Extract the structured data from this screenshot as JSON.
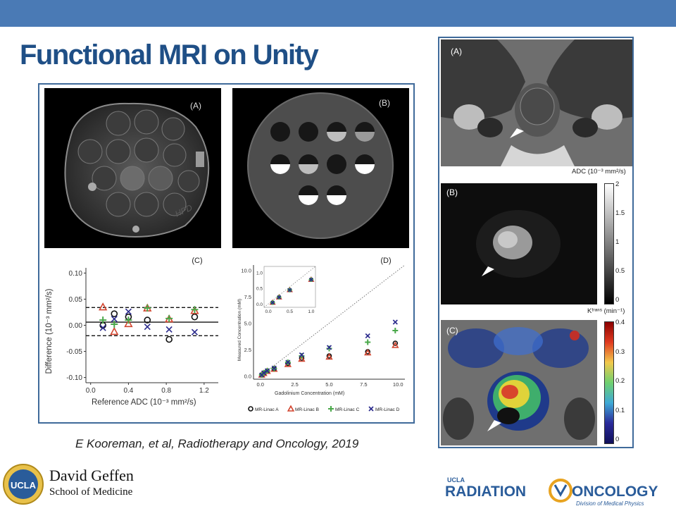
{
  "slide": {
    "title": "Functional MRI on Unity",
    "citation": "E Kooreman, et al, Radiotherapy and Oncology, 2019"
  },
  "colors": {
    "header_bar": "#4a7ab5",
    "title": "#1f4f86",
    "frame": "#3f6a9a"
  },
  "left_figure": {
    "panel_a_label": "(A)",
    "panel_b_label": "(B)",
    "panel_a_watermark": "HPD",
    "panel_c": {
      "label": "(C)",
      "ylabel": "Difference (10⁻³ mm²/s)",
      "xlabel": "Reference ADC (10⁻³ mm²/s)",
      "yticks": [
        "0.10",
        "0.05",
        "0.00",
        "-0.05",
        "-0.10"
      ],
      "xticks": [
        "0.0",
        "0.4",
        "0.8",
        "1.2"
      ]
    },
    "panel_d": {
      "label": "(D)",
      "ylabel": "Measured Concentration (mM)",
      "xlabel": "Gadolinium Concentration (mM)",
      "yticks": [
        "0.0",
        "2.5",
        "5.0",
        "7.5",
        "10.0"
      ],
      "xticks": [
        "0.0",
        "2.5",
        "5.0",
        "7.5",
        "10.0"
      ],
      "inset_yticks": [
        "0.0",
        "0.5",
        "1.0"
      ],
      "inset_xticks": [
        "0.0",
        "0.5",
        "1.0"
      ]
    },
    "legend": [
      "MR-Linac A",
      "MR-Linac B",
      "MR-Linac C",
      "MR-Linac D"
    ],
    "series_colors": [
      "#111111",
      "#d2452f",
      "#4aa84a",
      "#2a2a8c"
    ]
  },
  "right_figure": {
    "panel_a_label": "(A)",
    "panel_b_label": "(B)",
    "panel_c_label": "(C)",
    "adc_colorbar": {
      "title": "ADC (10⁻³ mm²/s)",
      "ticks": [
        "2",
        "1.5",
        "1",
        "0.5",
        "0"
      ]
    },
    "ktrans_colorbar": {
      "title": "Kᵗʳᵃⁿˢ (min⁻¹)",
      "ticks": [
        "0.4",
        "0.3",
        "0.2",
        "0.1",
        "0"
      ]
    }
  },
  "chart_data": [
    {
      "type": "scatter",
      "title": "",
      "xlabel": "Reference ADC (10⁻³ mm²/s)",
      "ylabel": "Difference (10⁻³ mm²/s)",
      "xlim": [
        -0.05,
        1.35
      ],
      "ylim": [
        -0.11,
        0.11
      ],
      "reference_lines": {
        "mean": 0.006,
        "upper": 0.034,
        "lower": -0.02
      },
      "legend": "bottom",
      "series": [
        {
          "name": "MR-Linac A",
          "marker": "circle",
          "x": [
            0.13,
            0.25,
            0.4,
            0.6,
            0.83,
            1.1
          ],
          "y": [
            0.0,
            0.022,
            0.016,
            0.01,
            -0.027,
            0.016
          ]
        },
        {
          "name": "MR-Linac B",
          "marker": "triangle",
          "x": [
            0.13,
            0.25,
            0.4,
            0.6,
            0.83,
            1.1
          ],
          "y": [
            0.035,
            -0.012,
            0.003,
            0.033,
            0.012,
            0.028
          ]
        },
        {
          "name": "MR-Linac C",
          "marker": "plus",
          "x": [
            0.13,
            0.25,
            0.4,
            0.6,
            0.83,
            1.1
          ],
          "y": [
            0.01,
            0.002,
            0.01,
            0.033,
            0.013,
            0.03
          ]
        },
        {
          "name": "MR-Linac D",
          "marker": "x",
          "x": [
            0.13,
            0.25,
            0.4,
            0.6,
            0.83,
            1.1
          ],
          "y": [
            -0.005,
            0.012,
            0.026,
            -0.003,
            -0.008,
            -0.013
          ]
        }
      ]
    },
    {
      "type": "scatter",
      "title": "",
      "xlabel": "Gadolinium Concentration (mM)",
      "ylabel": "Measured Concentration (mM)",
      "xlim": [
        -0.5,
        10.5
      ],
      "ylim": [
        -0.3,
        10.5
      ],
      "identity_line": true,
      "legend": "bottom",
      "series": [
        {
          "name": "MR-Linac A",
          "marker": "circle",
          "x": [
            0.1,
            0.25,
            0.5,
            1.0,
            2.0,
            3.0,
            5.0,
            7.8,
            9.8
          ],
          "y": [
            0.1,
            0.25,
            0.45,
            0.7,
            1.2,
            1.7,
            1.9,
            2.3,
            3.1
          ]
        },
        {
          "name": "MR-Linac B",
          "marker": "triangle",
          "x": [
            0.1,
            0.25,
            0.5,
            1.0,
            2.0,
            3.0,
            5.0,
            7.8,
            9.8
          ],
          "y": [
            0.1,
            0.25,
            0.45,
            0.65,
            1.1,
            1.6,
            1.8,
            2.2,
            2.9
          ]
        },
        {
          "name": "MR-Linac C",
          "marker": "plus",
          "x": [
            0.1,
            0.25,
            0.5,
            1.0,
            2.0,
            3.0,
            5.0,
            7.8,
            9.8
          ],
          "y": [
            0.1,
            0.3,
            0.5,
            0.7,
            1.3,
            1.9,
            2.6,
            3.2,
            4.3
          ]
        },
        {
          "name": "MR-Linac D",
          "marker": "x",
          "x": [
            0.1,
            0.25,
            0.5,
            1.0,
            2.0,
            3.0,
            5.0,
            7.8,
            9.8
          ],
          "y": [
            0.1,
            0.3,
            0.5,
            0.75,
            1.3,
            2.0,
            2.7,
            3.8,
            5.1
          ]
        }
      ],
      "inset": {
        "xlim": [
          -0.1,
          1.1
        ],
        "ylim": [
          -0.1,
          1.2
        ],
        "x": [
          0.1,
          0.25,
          0.5,
          1.0
        ],
        "y": [
          0.05,
          0.22,
          0.45,
          0.78
        ]
      }
    }
  ],
  "logos": {
    "left_name": "David Geffen",
    "left_sub": "School of Medicine",
    "seal_text": "UCLA",
    "right_top": "UCLA",
    "right_word_a": "RADIATION",
    "right_word_b": "ONCOLOGY",
    "right_sub": "Division of Medical Physics"
  }
}
